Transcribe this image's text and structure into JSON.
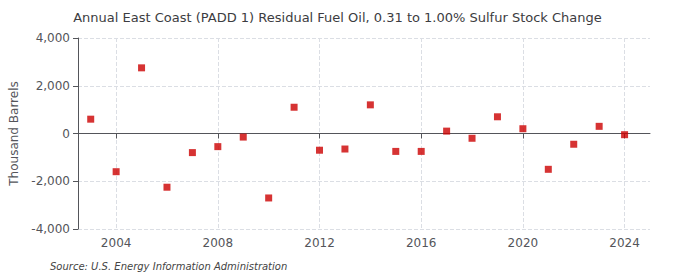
{
  "chart_data": {
    "type": "scatter",
    "title": "Annual East Coast (PADD 1) Residual Fuel Oil, 0.31 to 1.00% Sulfur Stock Change",
    "ylabel": "Thousand Barrels",
    "annotations": [
      "Source: U.S. Energy Information Administration"
    ],
    "x": [
      2003,
      2004,
      2005,
      2006,
      2007,
      2008,
      2009,
      2010,
      2011,
      2012,
      2013,
      2014,
      2015,
      2016,
      2017,
      2018,
      2019,
      2020,
      2021,
      2022,
      2023,
      2024
    ],
    "values": [
      600,
      -1600,
      2750,
      -2250,
      -800,
      -550,
      -150,
      -2700,
      1100,
      -700,
      -650,
      1200,
      -750,
      -750,
      100,
      -200,
      700,
      200,
      -1500,
      -450,
      300,
      -50
    ],
    "color": "#cc0000",
    "marker": "square",
    "xlim": [
      2002.5,
      2025
    ],
    "ylim": [
      -4000,
      4000
    ],
    "xticks": [
      2004,
      2008,
      2012,
      2016,
      2020,
      2024
    ],
    "yticks": [
      {
        "value": -4000,
        "label": "-4,000"
      },
      {
        "value": -2000,
        "label": "-2,000"
      },
      0,
      {
        "value": 2000,
        "label": "2,000"
      },
      {
        "value": 4000,
        "label": "4,000"
      }
    ],
    "grid": true
  }
}
